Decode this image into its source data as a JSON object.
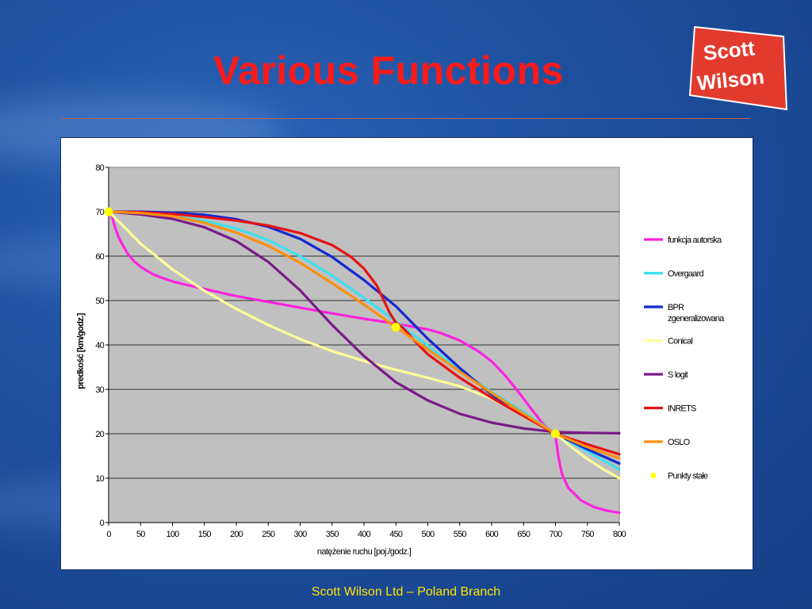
{
  "slide": {
    "title": "Various Functions",
    "footer": "Scott Wilson Ltd – Poland Branch",
    "logo": {
      "line1": "Scott",
      "line2": "Wilson",
      "color": "#e23b2e"
    }
  },
  "colors": {
    "title": "#ff1a1a",
    "footer": "#ffe400",
    "plot_background": "#c0c0c0"
  },
  "chart_data": {
    "type": "line",
    "xlabel": "natężenie ruchu [poj./godz.]",
    "ylabel": "predkość [km/godz.]",
    "xlim": [
      0,
      800
    ],
    "ylim": [
      0,
      80
    ],
    "xticks": [
      0,
      50,
      100,
      150,
      200,
      250,
      300,
      350,
      400,
      450,
      500,
      550,
      600,
      650,
      700,
      750,
      800
    ],
    "yticks": [
      0,
      10,
      20,
      30,
      40,
      50,
      60,
      70,
      80
    ],
    "grid": "horizontal",
    "legend_position": "right",
    "series": [
      {
        "name": "funkcja autorska",
        "color": "#ff22e0",
        "x": [
          0,
          5,
          10,
          15,
          20,
          30,
          40,
          50,
          60,
          70,
          80,
          100,
          120,
          150,
          200,
          250,
          300,
          350,
          400,
          450,
          480,
          500,
          520,
          550,
          580,
          600,
          620,
          640,
          660,
          680,
          690,
          695,
          700,
          705,
          710,
          720,
          740,
          760,
          780,
          800
        ],
        "y": [
          70,
          69,
          66.5,
          64.5,
          63,
          60.5,
          58.8,
          57.6,
          56.7,
          55.9,
          55.3,
          54.3,
          53.6,
          52.6,
          51,
          49.7,
          48.4,
          47.1,
          45.9,
          44.8,
          44,
          43.5,
          42.7,
          41,
          38.5,
          36.3,
          33.3,
          29.8,
          26,
          22.3,
          20.9,
          20.4,
          19.5,
          14.5,
          11,
          7.8,
          5,
          3.5,
          2.7,
          2.2
        ]
      },
      {
        "name": "Overgaard",
        "color": "#3ee0ee",
        "x": [
          0,
          50,
          100,
          150,
          200,
          250,
          300,
          350,
          400,
          450,
          500,
          550,
          600,
          650,
          700,
          750,
          800
        ],
        "y": [
          70,
          69.6,
          69,
          68,
          66.2,
          63.6,
          60,
          55.6,
          50.6,
          45.3,
          39.8,
          34.3,
          29.4,
          24.9,
          20,
          16,
          12
        ]
      },
      {
        "name": "BPR zgeneralizowana",
        "color": "#1428d2",
        "x": [
          0,
          50,
          100,
          150,
          200,
          250,
          300,
          350,
          400,
          450,
          500,
          550,
          600,
          650,
          700,
          750,
          800
        ],
        "y": [
          70,
          70,
          69.8,
          69.3,
          68.3,
          66.6,
          63.9,
          59.8,
          54.6,
          48.7,
          41.4,
          34.8,
          28.8,
          24.2,
          20,
          16.5,
          13.3
        ]
      },
      {
        "name": "Conical",
        "color": "#ffff9a",
        "x": [
          0,
          25,
          50,
          100,
          150,
          200,
          250,
          300,
          350,
          400,
          450,
          500,
          550,
          600,
          650,
          700,
          725,
          750,
          775,
          800
        ],
        "y": [
          70,
          66.5,
          62.8,
          57,
          52.2,
          48.1,
          44.5,
          41.3,
          38.6,
          36.4,
          34.4,
          32.6,
          30.7,
          27.9,
          24.3,
          20,
          17,
          14.3,
          12,
          10
        ]
      },
      {
        "name": "S logit",
        "color": "#7a1a88",
        "x": [
          0,
          50,
          100,
          150,
          200,
          250,
          300,
          350,
          400,
          450,
          500,
          550,
          600,
          650,
          700,
          750,
          800
        ],
        "y": [
          70,
          69.4,
          68.4,
          66.5,
          63.4,
          58.7,
          52.3,
          44.5,
          37.5,
          31.6,
          27.5,
          24.5,
          22.5,
          21.2,
          20.4,
          20.2,
          20.1
        ]
      },
      {
        "name": "INRETS",
        "color": "#e81212",
        "x": [
          0,
          50,
          100,
          150,
          200,
          250,
          300,
          350,
          380,
          400,
          420,
          440,
          450,
          460,
          470,
          480,
          500,
          550,
          600,
          650,
          700,
          750,
          800
        ],
        "y": [
          70,
          69.9,
          69.5,
          68.8,
          68,
          66.9,
          65.2,
          62.5,
          59.8,
          57.2,
          53.4,
          47.3,
          45,
          44,
          42.5,
          40.8,
          37.9,
          32.6,
          28.1,
          24,
          20,
          17.6,
          15.4
        ]
      },
      {
        "name": "OSLO",
        "color": "#ff8f0f",
        "x": [
          0,
          50,
          100,
          150,
          200,
          250,
          300,
          350,
          400,
          450,
          500,
          550,
          600,
          650,
          700,
          750,
          800
        ],
        "y": [
          70,
          69.7,
          69,
          67.5,
          65.3,
          62.3,
          58.5,
          53.9,
          49.1,
          44,
          39,
          34,
          29.2,
          24.5,
          20,
          17,
          14.5
        ]
      },
      {
        "name": "Punkty stałe",
        "color": "#ffff00",
        "marker": "circle",
        "x": [
          0,
          450,
          700
        ],
        "y": [
          70,
          44,
          20
        ]
      }
    ]
  }
}
